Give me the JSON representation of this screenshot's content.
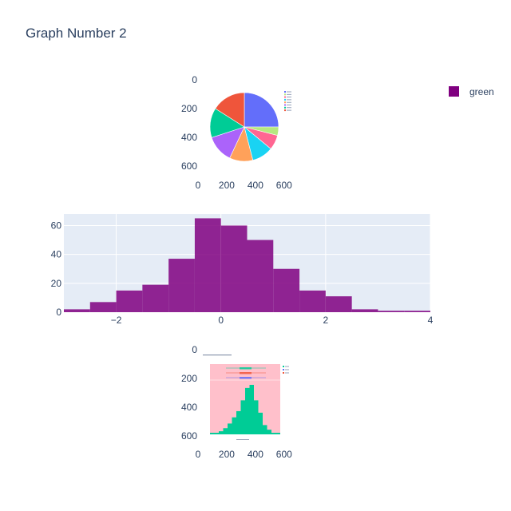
{
  "title": "Graph Number 2",
  "legend": {
    "label": "green",
    "color": "#800080"
  },
  "chart_data": [
    {
      "type": "image",
      "description_role": "embedded pie chart image",
      "x_ticks": [
        0,
        200,
        400,
        600
      ],
      "y_ticks": [
        0,
        200,
        400,
        600
      ],
      "embedded_pie": {
        "type": "pie",
        "slices": [
          {
            "value": 25,
            "color": "#636efa"
          },
          {
            "value": 4,
            "color": "#b6e880"
          },
          {
            "value": 7,
            "color": "#ff6692"
          },
          {
            "value": 10,
            "color": "#19d3f3"
          },
          {
            "value": 11,
            "color": "#ffa15a"
          },
          {
            "value": 13,
            "color": "#ab63fa"
          },
          {
            "value": 14,
            "color": "#00cc96"
          },
          {
            "value": 16,
            "color": "#ef553b"
          }
        ]
      }
    },
    {
      "type": "bar",
      "subtype": "histogram",
      "color": "#800080",
      "bin_edges": [
        -3,
        -2.5,
        -2,
        -1.5,
        -1,
        -0.5,
        0,
        0.5,
        1,
        1.5,
        2,
        2.5,
        3,
        3.5,
        4
      ],
      "counts": [
        2,
        7,
        15,
        19,
        37,
        65,
        60,
        50,
        30,
        15,
        11,
        2,
        1,
        1
      ],
      "x_ticks": [
        -2,
        0,
        2,
        4
      ],
      "y_ticks": [
        0,
        20,
        40,
        60
      ],
      "xlim": [
        -3,
        4
      ],
      "ylim": [
        0,
        68
      ],
      "grid": true
    },
    {
      "type": "image",
      "description_role": "embedded histogram with box plots image",
      "x_ticks": [
        0,
        200,
        400,
        600
      ],
      "y_ticks": [
        0,
        200,
        400,
        600
      ],
      "embedded_hist": {
        "type": "bar",
        "colors": [
          "#00cc96",
          "#636efa",
          "#ef553b"
        ],
        "counts": [
          1,
          1,
          2,
          4,
          7,
          11,
          15,
          22,
          30,
          32,
          22,
          14,
          6,
          3,
          1,
          1
        ]
      }
    }
  ]
}
